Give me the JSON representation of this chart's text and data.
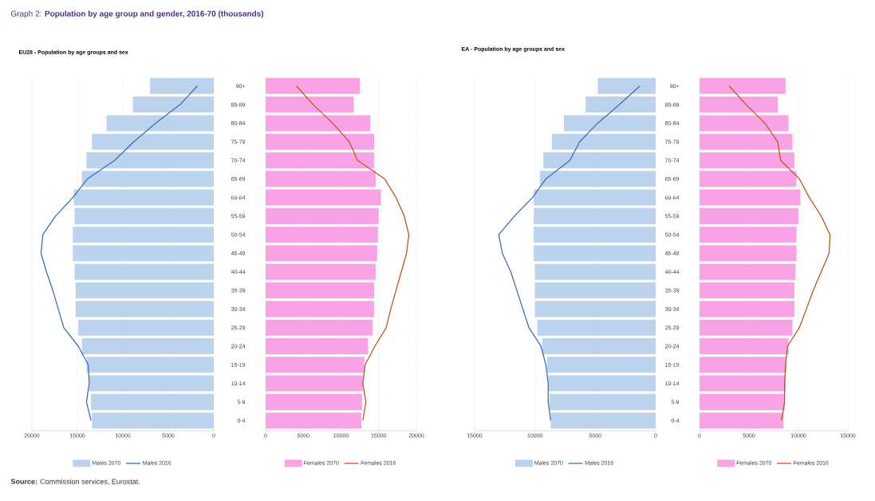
{
  "chart_data": [
    {
      "type": "bar",
      "orientation": "horizontal",
      "title": "Graph 2:    **Population by age group and gender, 2016-70 (thousands)**",
      "subtitle": "EU28 - Population by age groups and sex",
      "annotations": [
        "**Source:** Commission services, Eurostat."
      ],
      "categories": [
        null,
        null,
        null,
        null,
        null,
        null,
        null,
        null,
        null,
        null,
        null,
        null,
        null,
        null,
        null,
        null,
        null,
        null,
        null
      ],
      "series": [
        {
          "name": "Males 2070",
          "color": "#bcd3ee",
          "values": [
            7000,
            8900,
            11800,
            13400,
            14000,
            14500,
            15400,
            15300,
            15500,
            15500,
            15300,
            15200,
            15200,
            14900,
            14500,
            14000,
            13700,
            13500,
            13400
          ]
        },
        {
          "name": "Males 2016",
          "type": "line",
          "color": "#3d6fb0",
          "values": [
            1800,
            3700,
            6400,
            8800,
            10900,
            13900,
            15500,
            17400,
            18800,
            19000,
            18400,
            17700,
            17100,
            16500,
            14900,
            13800,
            13700,
            14000,
            13500
          ]
        }
      ],
      "xlim": [
        20000,
        0
      ],
      "xticks": [
        20000,
        15000,
        10000,
        5000,
        0
      ],
      "grid": "x",
      "legend": "bottom",
      "tick_labels": "x"
    },
    {
      "type": "bar",
      "orientation": "horizontal",
      "categories": [
        "90+",
        "85-89",
        "80-84",
        "75-79",
        "70-74",
        "65-69",
        "60-64",
        "55-59",
        "50-54",
        "45-49",
        "40-44",
        "35-39",
        "30-34",
        "25-29",
        "20-24",
        "15-19",
        "10-14",
        "5-9",
        "0-4"
      ],
      "series": [
        {
          "name": "Females 2070",
          "color": "#f9a3e6",
          "values": [
            12500,
            11700,
            13900,
            14400,
            14400,
            14600,
            15300,
            15000,
            14900,
            14800,
            14600,
            14400,
            14400,
            14200,
            13600,
            13100,
            12900,
            12800,
            12700
          ]
        },
        {
          "name": "Females 2016",
          "type": "line",
          "color": "#c0561c",
          "values": [
            4100,
            6300,
            8900,
            11100,
            12200,
            15800,
            17300,
            18400,
            19000,
            18700,
            18000,
            17300,
            16600,
            16000,
            14500,
            13200,
            12900,
            13300,
            12900
          ]
        }
      ],
      "xlim": [
        0,
        20000
      ],
      "xticks": [
        0,
        5000,
        10000,
        15000,
        20000
      ],
      "grid": "x",
      "legend": "bottom"
    },
    {
      "type": "bar",
      "orientation": "horizontal",
      "title": "EA - Population by age groups and sex",
      "categories": [
        null,
        null,
        null,
        null,
        null,
        null,
        null,
        null,
        null,
        null,
        null,
        null,
        null,
        null,
        null,
        null,
        null,
        null,
        null
      ],
      "series": [
        {
          "name": "Males 2070",
          "color": "#bcd3ee",
          "values": [
            4800,
            5800,
            7600,
            8600,
            9300,
            9600,
            10100,
            10100,
            10100,
            10100,
            10000,
            10000,
            10000,
            9800,
            9400,
            9000,
            8900,
            8800,
            8700
          ]
        },
        {
          "name": "Males 2016",
          "type": "line",
          "color": "#3d6fb0",
          "values": [
            1300,
            3000,
            4800,
            6300,
            7100,
            9100,
            10200,
            11700,
            13000,
            12700,
            12000,
            11500,
            11000,
            10500,
            9500,
            9100,
            8900,
            8900,
            8700
          ]
        }
      ],
      "xlim": [
        15000,
        0
      ],
      "xticks": [
        15000,
        10000,
        5000,
        0
      ],
      "grid": "x",
      "legend": "bottom",
      "tick_labels": "x"
    },
    {
      "type": "bar",
      "orientation": "horizontal",
      "categories": [
        "90+",
        "85-89",
        "80-84",
        "75-79",
        "70-74",
        "65-69",
        "60-64",
        "55-59",
        "50-54",
        "45-49",
        "40-44",
        "35-39",
        "30-34",
        "25-29",
        "20-24",
        "15-19",
        "10-14",
        "5-9",
        "0-4"
      ],
      "series": [
        {
          "name": "Females 2070",
          "color": "#f9a3e6",
          "values": [
            8700,
            7900,
            9000,
            9400,
            9600,
            9800,
            10200,
            10000,
            9800,
            9800,
            9700,
            9600,
            9600,
            9400,
            9000,
            8800,
            8700,
            8600,
            8500
          ]
        },
        {
          "name": "Females 2016",
          "type": "line",
          "color": "#c0561c",
          "values": [
            3000,
            4700,
            6600,
            7900,
            8200,
            10100,
            11100,
            12300,
            13200,
            13100,
            12300,
            11500,
            10800,
            10100,
            8900,
            8700,
            8600,
            8600,
            8300
          ]
        }
      ],
      "xlim": [
        0,
        15000
      ],
      "xticks": [
        0,
        5000,
        10000,
        15000
      ],
      "grid": "x",
      "legend": "bottom"
    }
  ]
}
